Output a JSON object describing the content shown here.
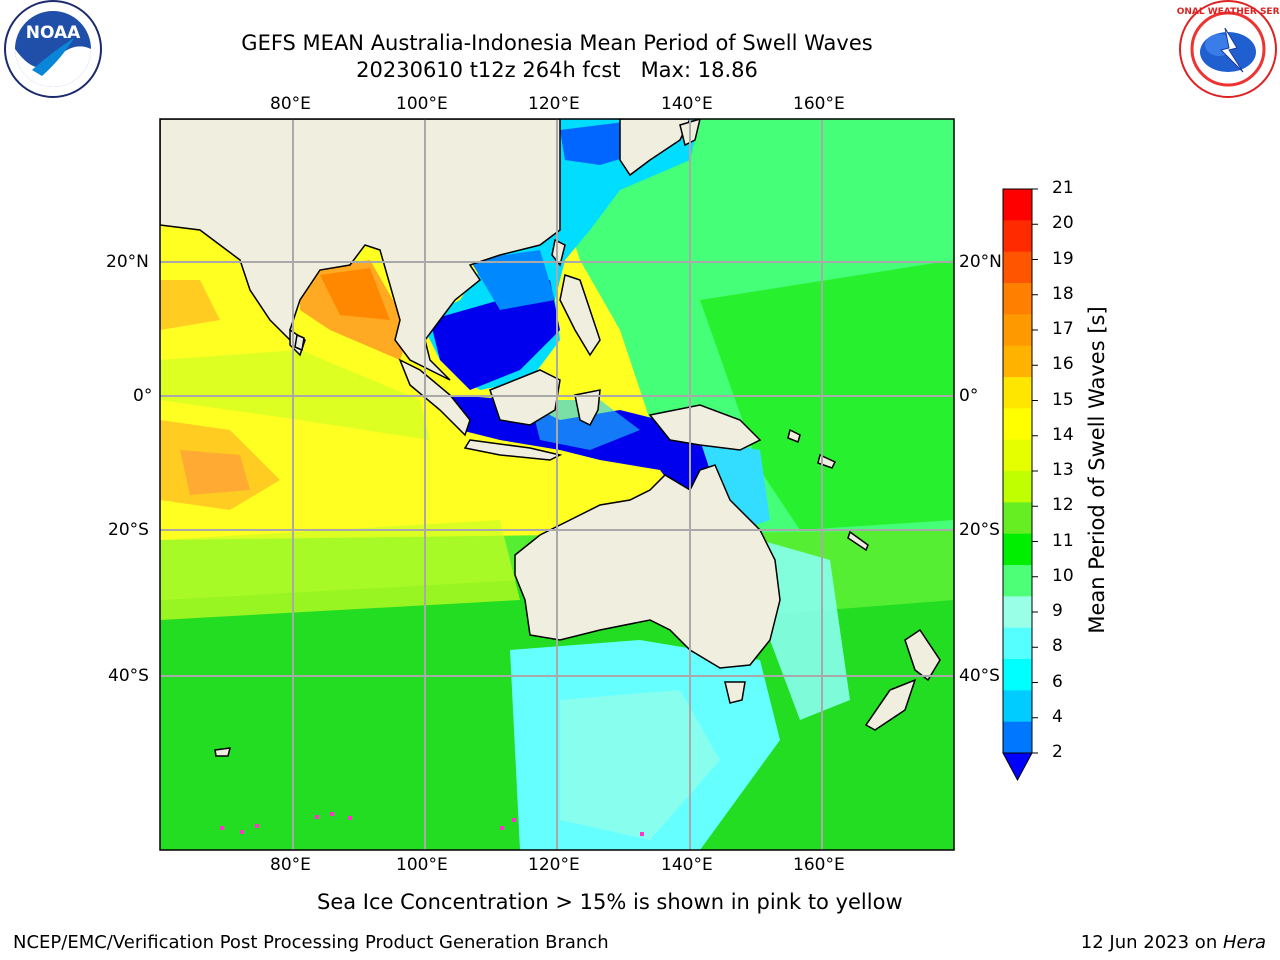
{
  "header": {
    "title_line1": "GEFS MEAN Australia-Indonesia Mean Period of Swell Waves",
    "title_line2": "20230610 t12z 264h fcst   Max: 18.86"
  },
  "logos": {
    "left": "noaa-logo",
    "right": "national-weather-service-logo"
  },
  "map": {
    "lon_ticks": [
      "80°E",
      "100°E",
      "120°E",
      "140°E",
      "160°E"
    ],
    "lat_ticks": [
      "20°N",
      "0°",
      "20°S",
      "40°S"
    ],
    "lon_range": [
      60,
      180
    ],
    "lat_range": [
      -68,
      42
    ],
    "grid": true,
    "regions": {
      "indian_ocean_west": "yellow/orange 13-17s",
      "south_china_sea": "blue 2-6s",
      "pacific": "green 9-11s",
      "southern_ocean_south_of_australia": "cyan 6-9s"
    }
  },
  "colorbar": {
    "label": "Mean Period of Swell Waves [s]",
    "ticks": [
      "21",
      "20",
      "19",
      "18",
      "17",
      "16",
      "15",
      "14",
      "13",
      "12",
      "11",
      "10",
      "9",
      "8",
      "6",
      "4",
      "2"
    ],
    "colors": [
      "#ff0000",
      "#ff2a00",
      "#ff5500",
      "#ff7f00",
      "#ff9900",
      "#ffb300",
      "#ffe600",
      "#ffff00",
      "#e6ff00",
      "#bfff00",
      "#66ee22",
      "#00ee00",
      "#4dff77",
      "#99ffe6",
      "#55ffff",
      "#00ffff",
      "#00ccff",
      "#0077ff"
    ],
    "extend_color": "#0000ff"
  },
  "note": "Sea Ice Concentration > 15% is shown in pink to yellow",
  "footer": {
    "left": "NCEP/EMC/Verification Post Processing Product Generation Branch",
    "right_date": "12 Jun 2023 on ",
    "right_host": "Hera"
  }
}
